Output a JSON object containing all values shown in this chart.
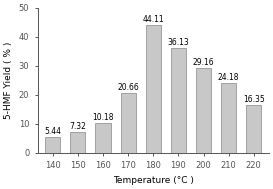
{
  "categories": [
    "140",
    "150",
    "160",
    "170",
    "180",
    "190",
    "200",
    "210",
    "220"
  ],
  "values": [
    5.44,
    7.32,
    10.18,
    20.66,
    44.11,
    36.13,
    29.16,
    24.18,
    16.35
  ],
  "bar_color": "#c8c8c8",
  "bar_edgecolor": "#888888",
  "xlabel": "Temperature (°C )",
  "ylabel": "5-HMF Yield ( % )",
  "ylim": [
    0,
    50
  ],
  "yticks": [
    0,
    10,
    20,
    30,
    40,
    50
  ],
  "label_fontsize": 6.5,
  "tick_fontsize": 6,
  "bar_label_fontsize": 5.5,
  "background_color": "#ffffff",
  "bar_width": 0.6
}
